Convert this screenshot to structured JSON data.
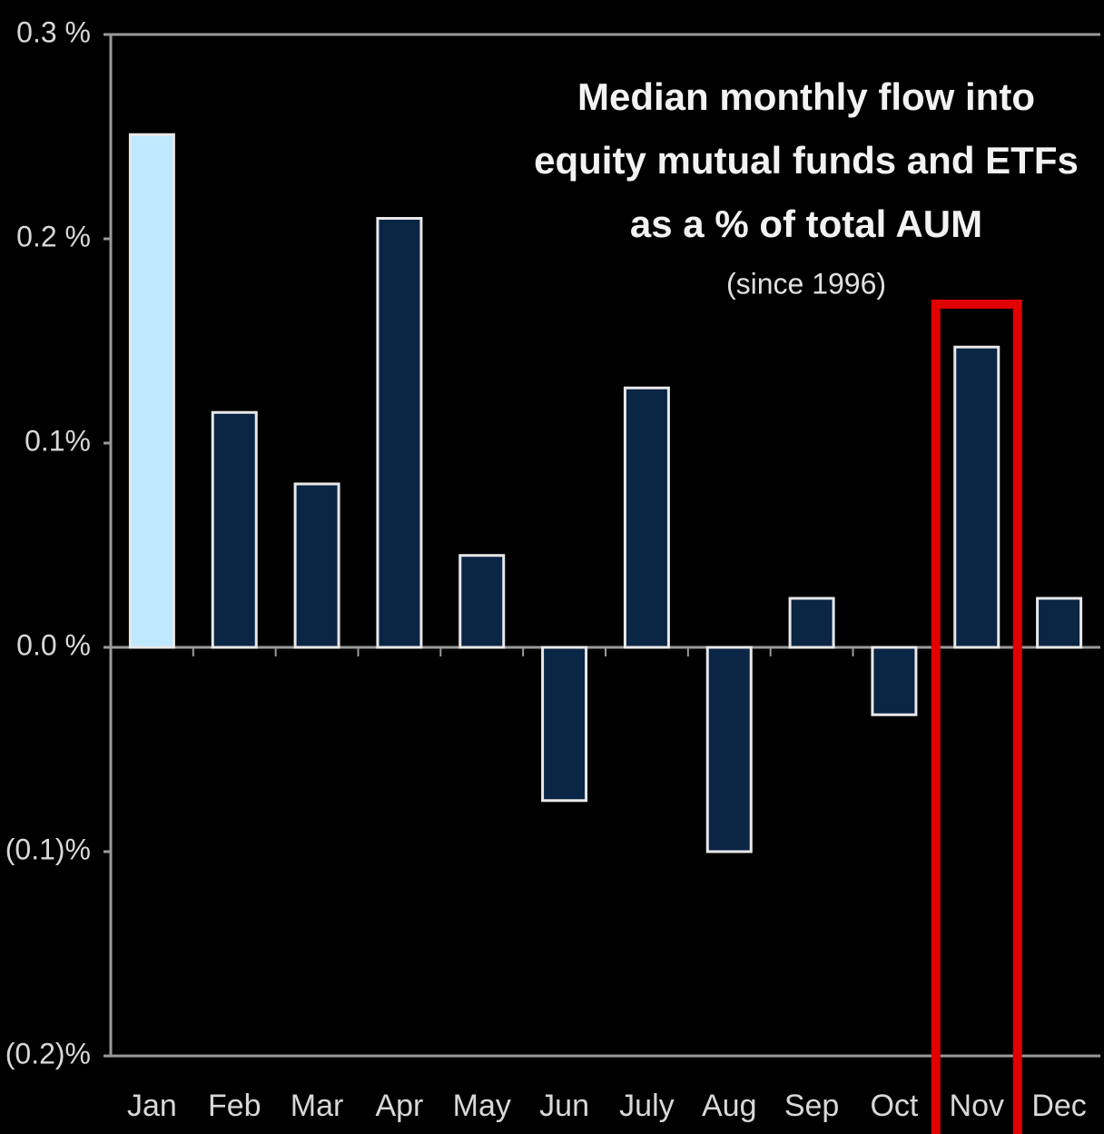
{
  "chart_data": {
    "type": "bar",
    "title": [
      "Median monthly flow into",
      "equity mutual funds and ETFs",
      "as a % of total AUM"
    ],
    "subtitle": "(since 1996)",
    "categories": [
      "Jan",
      "Feb",
      "Mar",
      "Apr",
      "May",
      "Jun",
      "July",
      "Aug",
      "Sep",
      "Oct",
      "Nov",
      "Dec"
    ],
    "values": [
      0.251,
      0.115,
      0.08,
      0.21,
      0.045,
      -0.075,
      0.127,
      -0.1,
      0.024,
      -0.033,
      0.147,
      0.024
    ],
    "colors": [
      "#bfe9ff",
      "#0b2545",
      "#0b2545",
      "#0b2545",
      "#0b2545",
      "#0b2545",
      "#0b2545",
      "#0b2545",
      "#0b2545",
      "#0b2545",
      "#0b2545",
      "#0b2545"
    ],
    "ylim": [
      -0.2,
      0.3
    ],
    "yticks": [
      {
        "value": 0.3,
        "label": "0.3 %"
      },
      {
        "value": 0.2,
        "label": "0.2 %"
      },
      {
        "value": 0.1,
        "label": "0.1%"
      },
      {
        "value": 0.0,
        "label": "0.0 %"
      },
      {
        "value": -0.1,
        "label": "(0.1)%"
      },
      {
        "value": -0.2,
        "label": "(0.2)%"
      }
    ],
    "grid": false,
    "highlight_category": "Nov",
    "highlight_color": "#e00000"
  }
}
